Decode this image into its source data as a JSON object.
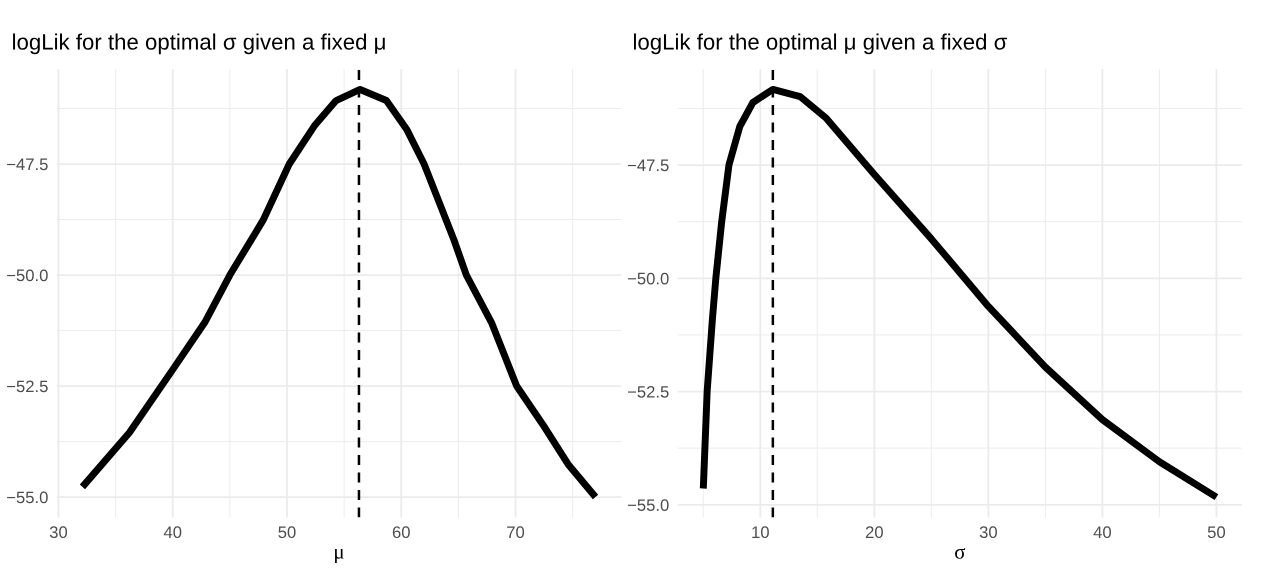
{
  "chart_data": [
    {
      "type": "line",
      "title": "logLik for the optimal σ given a fixed μ",
      "xlabel": "μ",
      "grid": true,
      "marker": "none",
      "line_style": "solid",
      "xlim": [
        29.85,
        79.25
      ],
      "ylim": [
        -55.46,
        -45.36
      ],
      "xticks": [
        30,
        40,
        50,
        60,
        70
      ],
      "yticks": [
        {
          "value": -55,
          "label": "−55.0"
        },
        {
          "value": -52.5,
          "label": "−52.5"
        },
        {
          "value": -50,
          "label": "−50.0"
        },
        {
          "value": -47.5,
          "label": "−47.5"
        }
      ],
      "series": [
        {
          "color": "#000000",
          "x": [
            32.1,
            36.2,
            40.0,
            42.8,
            45.0,
            47.9,
            50.2,
            52.4,
            54.3,
            56.4,
            58.7,
            60.5,
            62.0,
            64.6,
            65.7,
            67.9,
            70.1,
            72.4,
            74.6,
            77.0
          ],
          "values": [
            -54.77,
            -53.55,
            -52.13,
            -51.07,
            -50.0,
            -48.77,
            -47.5,
            -46.64,
            -46.07,
            -45.82,
            -46.07,
            -46.73,
            -47.5,
            -49.2,
            -50.0,
            -51.07,
            -52.5,
            -53.37,
            -54.26,
            -55.0
          ]
        }
      ],
      "ref_lines": [
        {
          "axis": "x",
          "value": 56.3,
          "color": "#000000",
          "line_style": "dashed"
        }
      ]
    },
    {
      "type": "line",
      "title": "logLik for the optimal μ given a fixed σ",
      "xlabel": "σ",
      "grid": true,
      "marker": "none",
      "line_style": "solid",
      "xlim": [
        2.75,
        52.25
      ],
      "ylim": [
        -55.28,
        -45.38
      ],
      "xticks": [
        10,
        20,
        30,
        40,
        50
      ],
      "yticks": [
        {
          "value": -55,
          "label": "−55.0"
        },
        {
          "value": -52.5,
          "label": "−52.5"
        },
        {
          "value": -50,
          "label": "−50.0"
        },
        {
          "value": -47.5,
          "label": "−47.5"
        }
      ],
      "series": [
        {
          "color": "#000000",
          "x": [
            5.0,
            5.34,
            5.8,
            6.1,
            6.6,
            7.25,
            8.2,
            9.35,
            11.1,
            13.5,
            15.8,
            20.0,
            25.0,
            30.0,
            35.0,
            40.0,
            45.0,
            50.0
          ],
          "values": [
            -54.64,
            -52.49,
            -50.9,
            -50.0,
            -48.78,
            -47.5,
            -46.65,
            -46.12,
            -45.83,
            -45.99,
            -46.47,
            -47.71,
            -49.13,
            -50.62,
            -51.96,
            -53.12,
            -54.05,
            -54.83
          ]
        }
      ],
      "ref_lines": [
        {
          "axis": "x",
          "value": 11.1,
          "color": "#000000",
          "line_style": "dashed"
        }
      ]
    }
  ]
}
